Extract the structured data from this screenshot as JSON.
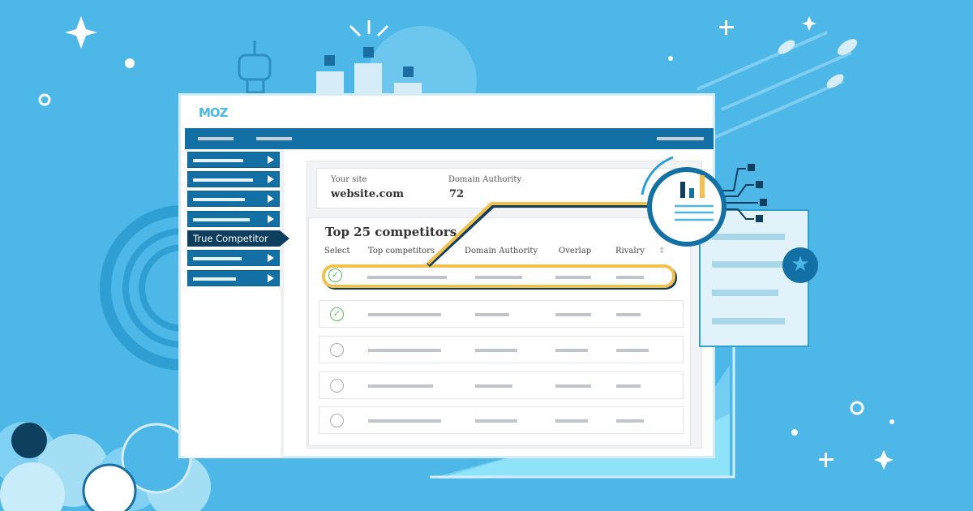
{
  "app": {
    "logo": "MOZ"
  },
  "sidebar": {
    "items": [
      {
        "label": ""
      },
      {
        "label": ""
      },
      {
        "label": ""
      },
      {
        "label": ""
      },
      {
        "label": "True Competitor",
        "active": true
      },
      {
        "label": ""
      },
      {
        "label": ""
      }
    ]
  },
  "site": {
    "your_site_label": "Your site",
    "your_site_value": "website.com",
    "da_label": "Domain Authority",
    "da_value": "72"
  },
  "competitors": {
    "title": "Top 25 competitors",
    "columns": [
      "Select",
      "Top competitors",
      "Domain Authority",
      "Overlap",
      "Rivalry"
    ],
    "rows": [
      {
        "selected": true,
        "highlighted": true
      },
      {
        "selected": true
      },
      {
        "selected": false
      },
      {
        "selected": false
      },
      {
        "selected": false
      }
    ]
  },
  "icons": {
    "check": "✓",
    "sort": "⇕",
    "star": "★"
  },
  "colors": {
    "background": "#4db7e7",
    "nav": "#1270a4",
    "active": "#0e3f5e",
    "highlight": "#f3c14b",
    "check": "#5bbf5a"
  }
}
